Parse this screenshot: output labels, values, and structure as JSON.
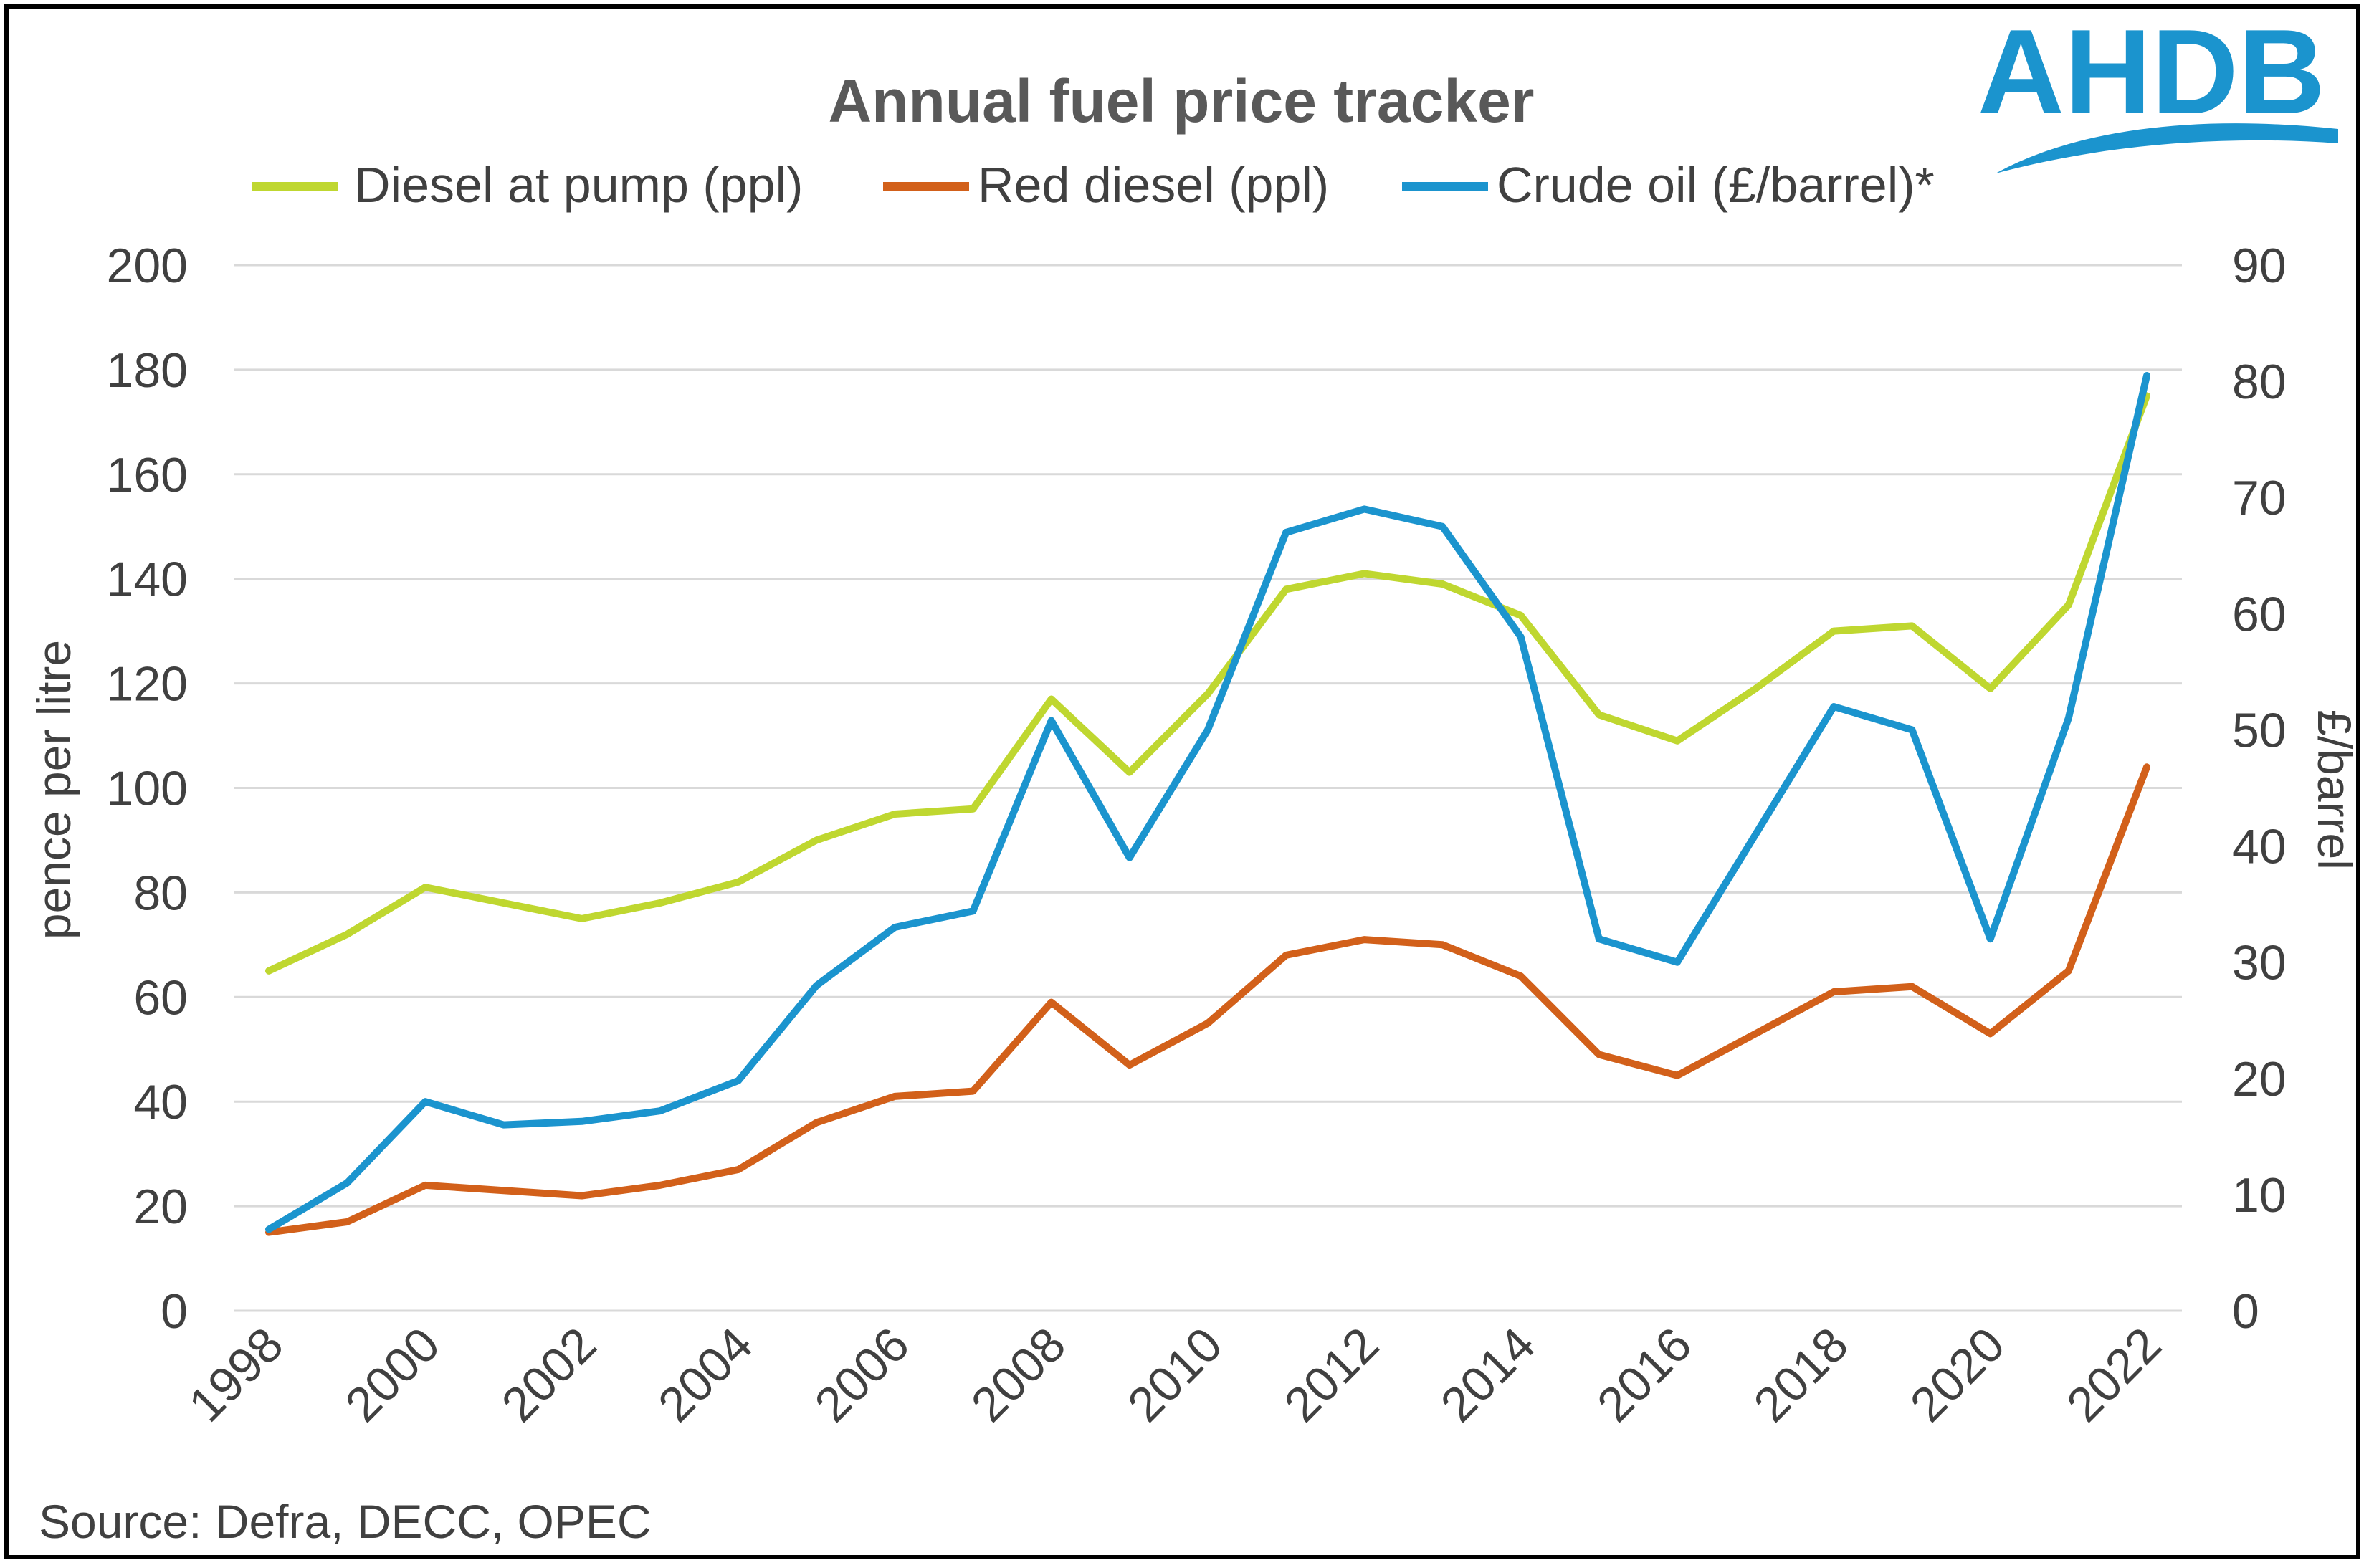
{
  "chart_data": {
    "type": "line",
    "title": "Annual fuel price tracker",
    "source": "Source: Defra, DECC, OPEC",
    "logo": "AHDB",
    "x": [
      1998,
      1999,
      2000,
      2001,
      2002,
      2003,
      2004,
      2005,
      2006,
      2007,
      2008,
      2009,
      2010,
      2011,
      2012,
      2013,
      2014,
      2015,
      2016,
      2017,
      2018,
      2019,
      2020,
      2021,
      2022
    ],
    "x_tick_labels": [
      "1998",
      "2000",
      "2002",
      "2004",
      "2006",
      "2008",
      "2010",
      "2012",
      "2014",
      "2016",
      "2018",
      "2020",
      "2022"
    ],
    "ylabel": "pence per litre",
    "y2label": "£/barrel",
    "ylim": [
      0,
      200
    ],
    "y2lim": [
      0,
      90
    ],
    "y_ticks": [
      "0",
      "20",
      "40",
      "60",
      "80",
      "100",
      "120",
      "140",
      "160",
      "180",
      "200"
    ],
    "y2_ticks": [
      "0",
      "10",
      "20",
      "30",
      "40",
      "50",
      "60",
      "70",
      "80",
      "90"
    ],
    "grid": true,
    "legend_position": "top",
    "series": [
      {
        "name": "Diesel at pump (ppl)",
        "axis": "left",
        "color": "#BFD730",
        "values": [
          65,
          72,
          81,
          78,
          75,
          78,
          82,
          90,
          95,
          96,
          117,
          103,
          118,
          138,
          141,
          139,
          133,
          114,
          109,
          119,
          130,
          131,
          119,
          135,
          175
        ]
      },
      {
        "name": "Red diesel (ppl)",
        "axis": "left",
        "color": "#D2601A",
        "values": [
          15,
          17,
          24,
          23,
          22,
          24,
          27,
          36,
          41,
          42,
          59,
          47,
          55,
          68,
          71,
          70,
          64,
          49,
          45,
          53,
          61,
          62,
          53,
          65,
          104
        ]
      },
      {
        "name": "Crude oil (£/barrel)*",
        "axis": "right",
        "color": "#1B94CE",
        "values": [
          7,
          11,
          18,
          16,
          16.3,
          17.2,
          19.8,
          28,
          33,
          34.4,
          50.8,
          39,
          50,
          67,
          69,
          67.5,
          58,
          32,
          30,
          41,
          52,
          50,
          32,
          51,
          80.5
        ]
      }
    ]
  }
}
